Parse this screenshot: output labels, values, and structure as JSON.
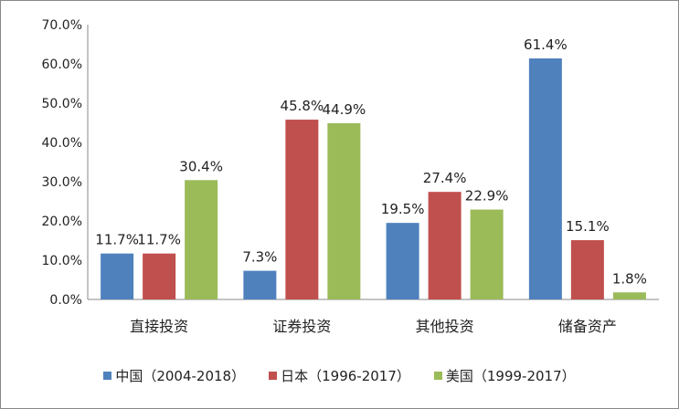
{
  "chart_data": {
    "type": "bar",
    "categories": [
      "直接投资",
      "证券投资",
      "其他投资",
      "储备资产"
    ],
    "series": [
      {
        "name": "中国（2004-2018）",
        "values": [
          11.7,
          7.3,
          19.5,
          61.4
        ],
        "labels": [
          "11.7%",
          "7.3%",
          "19.5%",
          "61.4%"
        ],
        "color": "#4F81BD"
      },
      {
        "name": "日本（1996-2017）",
        "values": [
          11.7,
          45.8,
          27.4,
          15.1
        ],
        "labels": [
          "11.7%",
          "45.8%",
          "27.4%",
          "15.1%"
        ],
        "color": "#C0504D"
      },
      {
        "name": "美国（1999-2017）",
        "values": [
          30.4,
          44.9,
          22.9,
          1.8
        ],
        "labels": [
          "30.4%",
          "44.9%",
          "22.9%",
          "1.8%"
        ],
        "color": "#9BBB59"
      }
    ],
    "yticks": [
      "0.0%",
      "10.0%",
      "20.0%",
      "30.0%",
      "40.0%",
      "50.0%",
      "60.0%",
      "70.0%"
    ],
    "ylim": [
      0,
      70
    ],
    "grid": false,
    "legend": "bottom"
  }
}
